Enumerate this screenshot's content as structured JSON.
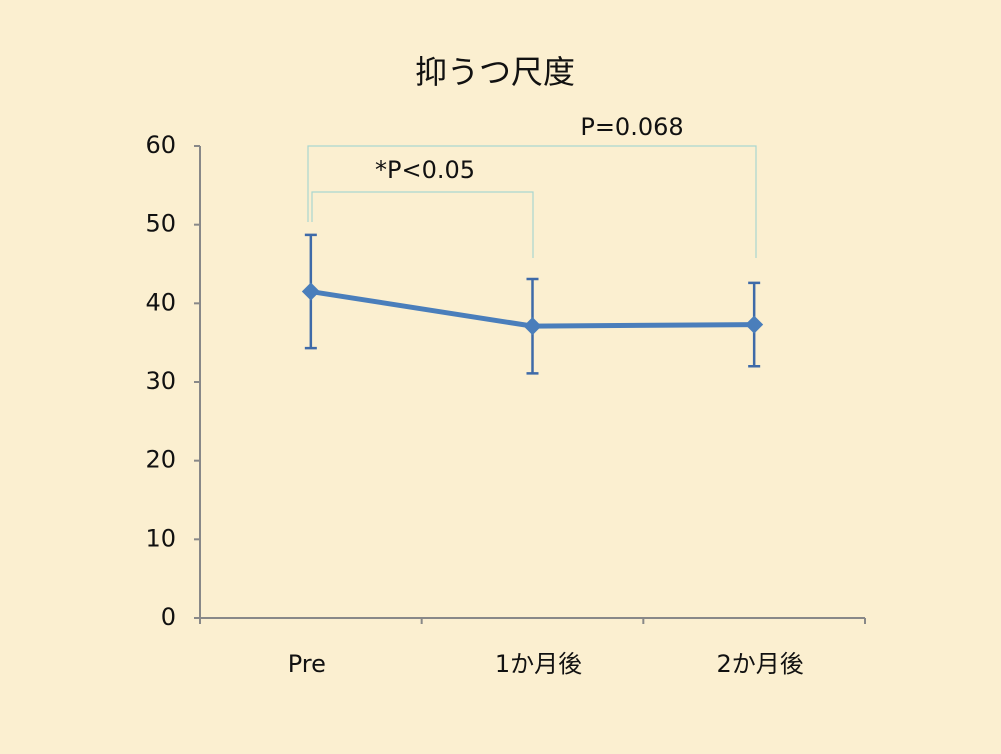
{
  "chart_data": {
    "type": "line",
    "title": "抑うつ尺度",
    "categories": [
      "Pre",
      "1か月後",
      "2か月後"
    ],
    "series": [
      {
        "color": "#4a7ebb",
        "values": [
          41.5,
          37.1,
          37.3
        ],
        "errors": [
          7.2,
          6.0,
          5.3
        ]
      }
    ],
    "ylim": [
      0,
      60
    ],
    "yticks": [
      0,
      10,
      20,
      30,
      40,
      50,
      60
    ],
    "annotations": [
      "*P<0.05",
      "P=0.068"
    ]
  }
}
